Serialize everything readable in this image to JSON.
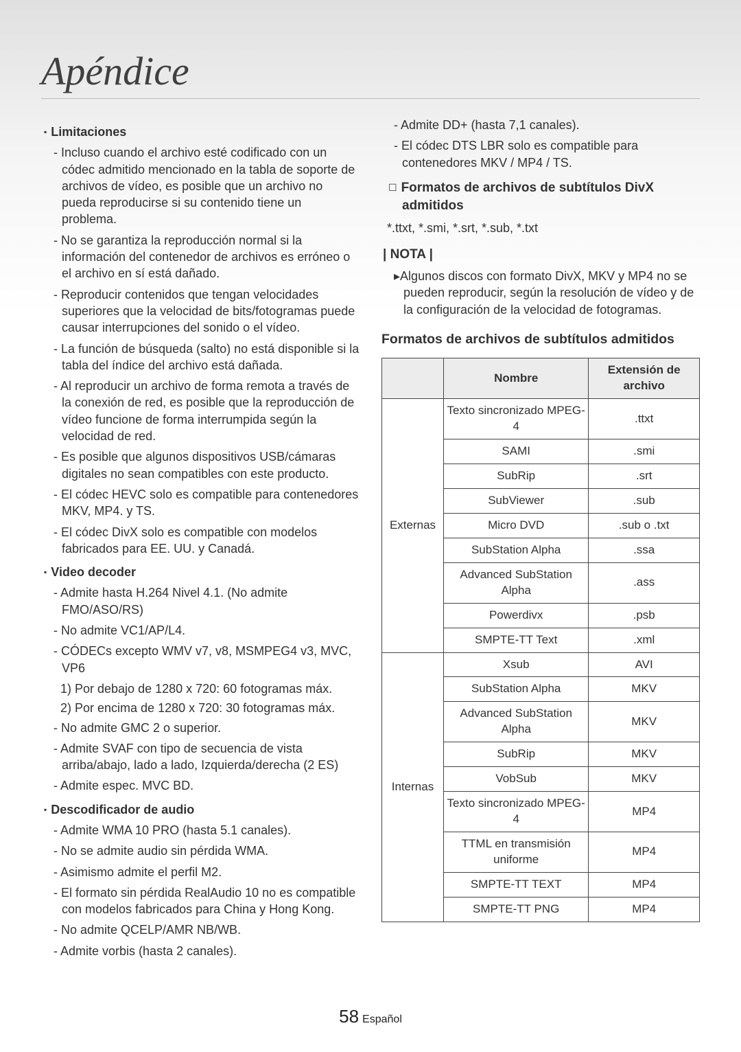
{
  "title": "Apéndice",
  "left": {
    "limitaciones_head": "Limitaciones",
    "limitaciones": [
      "Incluso cuando el archivo esté codificado con un códec admitido mencionado en la tabla de soporte de archivos de vídeo, es posible que un archivo no pueda reproducirse si su contenido tiene un problema.",
      "No se garantiza la reproducción normal si la información del contenedor de archivos es erróneo o el archivo en sí está dañado.",
      "Reproducir contenidos que tengan velocidades superiores que la velocidad de bits/fotogramas puede causar interrupciones del sonido o el vídeo.",
      "La función de búsqueda (salto) no está disponible si la tabla del índice del archivo está dañada.",
      "Al reproducir un archivo de forma remota a través de la conexión de red, es posible que la reproducción de vídeo funcione de forma interrumpida según la velocidad de red.",
      "Es posible que algunos dispositivos USB/cámaras digitales no sean compatibles con este producto.",
      "El códec HEVC solo es compatible para contenedores MKV, MP4. y TS.",
      "El códec DivX solo es compatible con modelos fabricados para EE. UU. y Canadá."
    ],
    "video_head": "Video decoder",
    "video": [
      "Admite hasta H.264 Nivel 4.1. (No admite FMO/ASO/RS)",
      "No admite VC1/AP/L4.",
      "CÓDECs excepto WMV v7, v8, MSMPEG4 v3, MVC, VP6",
      "No admite GMC 2 o superior.",
      "Admite SVAF con tipo de secuencia de vista arriba/abajo, lado a lado, Izquierda/derecha (2 ES)",
      "Admite espec. MVC BD."
    ],
    "video_sub1": "1) Por debajo de 1280 x 720: 60 fotogramas máx.",
    "video_sub2": "2) Por encima de 1280 x 720: 30 fotogramas máx.",
    "audio_head": "Descodificador de audio",
    "audio": [
      "Admite WMA 10 PRO (hasta 5.1 canales).",
      "No se admite audio sin pérdida WMA.",
      "Asimismo admite el perfil M2.",
      "El formato sin pérdida RealAudio 10 no es compatible con modelos fabricados para China y Hong Kong.",
      "No admite QCELP/AMR NB/WB.",
      "Admite vorbis (hasta 2 canales)."
    ]
  },
  "right": {
    "top_items": [
      "Admite DD+ (hasta 7,1 canales).",
      "El códec DTS LBR solo es compatible para contenedores MKV / MP4 / TS."
    ],
    "divx_head": "Formatos de archivos de subtítulos DivX admitidos",
    "divx_line": "*.ttxt, *.smi, *.srt, *.sub, *.txt",
    "nota_label": "| NOTA |",
    "nota_items": [
      "Algunos discos con formato DivX, MKV y MP4 no se pueden reproducir, según la resolución de vídeo y de la configuración de la velocidad de fotogramas."
    ],
    "table_title": "Formatos de archivos de subtítulos admitidos",
    "table": {
      "headers": {
        "blank": "",
        "name": "Nombre",
        "ext": "Extensión de archivo"
      },
      "groups": [
        {
          "label": "Externas",
          "rows": [
            {
              "name": "Texto sincronizado MPEG-4",
              "ext": ".ttxt"
            },
            {
              "name": "SAMI",
              "ext": ".smi"
            },
            {
              "name": "SubRip",
              "ext": ".srt"
            },
            {
              "name": "SubViewer",
              "ext": ".sub"
            },
            {
              "name": "Micro DVD",
              "ext": ".sub o .txt"
            },
            {
              "name": "SubStation Alpha",
              "ext": ".ssa"
            },
            {
              "name": "Advanced SubStation Alpha",
              "ext": ".ass"
            },
            {
              "name": "Powerdivx",
              "ext": ".psb"
            },
            {
              "name": "SMPTE-TT Text",
              "ext": ".xml"
            }
          ]
        },
        {
          "label": "Internas",
          "rows": [
            {
              "name": "Xsub",
              "ext": "AVI"
            },
            {
              "name": "SubStation Alpha",
              "ext": "MKV"
            },
            {
              "name": "Advanced SubStation Alpha",
              "ext": "MKV"
            },
            {
              "name": "SubRip",
              "ext": "MKV"
            },
            {
              "name": "VobSub",
              "ext": "MKV"
            },
            {
              "name": "Texto sincronizado MPEG-4",
              "ext": "MP4"
            },
            {
              "name": "TTML en transmisión uniforme",
              "ext": "MP4"
            },
            {
              "name": "SMPTE-TT TEXT",
              "ext": "MP4"
            },
            {
              "name": "SMPTE-TT PNG",
              "ext": "MP4"
            }
          ]
        }
      ]
    }
  },
  "footer": {
    "page": "58",
    "lang": "Español"
  }
}
